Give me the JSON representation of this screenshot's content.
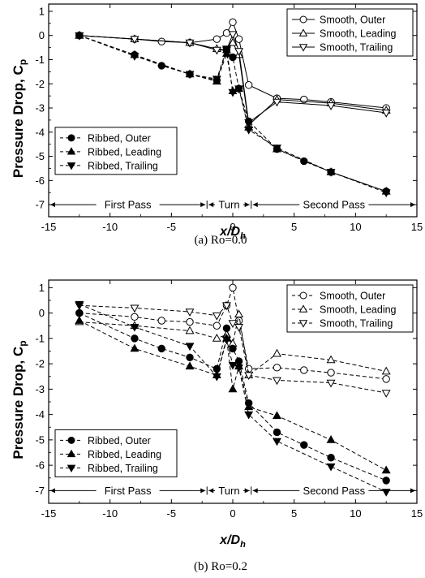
{
  "chart_data": [
    {
      "type": "line",
      "caption": "(a)  Ro=0.0",
      "xlabel": "x/D",
      "xlabel_sub": "h",
      "ylabel": "Pressure Drop, C",
      "ylabel_sub": "p",
      "xlim": [
        -15,
        15
      ],
      "ylim": [
        -7.5,
        1.3
      ],
      "xticks": [
        "-15",
        "-10",
        "-5",
        "0",
        "5",
        "10",
        "15"
      ],
      "yticks": [
        "1",
        "0",
        "-1",
        "-2",
        "-3",
        "-4",
        "-5",
        "-6",
        "-7"
      ],
      "regions": [
        "First Pass",
        "Turn",
        "Second Pass"
      ],
      "legend_top_right": [
        "Smooth, Outer",
        "Smooth, Leading",
        "Smooth, Trailing"
      ],
      "legend_bottom_left": [
        "Ribbed, Outer",
        "Ribbed, Leading",
        "Ribbed, Trailing"
      ],
      "series": [
        {
          "name": "Smooth, Outer",
          "marker": "circle",
          "filled": false,
          "dash": false,
          "x": [
            -12.5,
            -8,
            -5.8,
            -3.5,
            -1.3,
            -0.5,
            0,
            0.5,
            1.3,
            3.6,
            5.8,
            8,
            12.5
          ],
          "y": [
            0,
            -0.15,
            -0.25,
            -0.3,
            -0.15,
            0.1,
            0.55,
            -0.15,
            -2.05,
            -2.6,
            -2.65,
            -2.75,
            -3.0
          ]
        },
        {
          "name": "Smooth, Leading",
          "marker": "triangle-up",
          "filled": false,
          "dash": false,
          "x": [
            -12.5,
            -8,
            -3.5,
            -1.3,
            -0.5,
            0,
            0.5,
            1.3,
            3.6,
            8,
            12.5
          ],
          "y": [
            0,
            -0.15,
            -0.3,
            -0.55,
            -0.6,
            -0.3,
            -0.8,
            -3.7,
            -2.65,
            -2.8,
            -3.1
          ]
        },
        {
          "name": "Smooth, Trailing",
          "marker": "triangle-down",
          "filled": false,
          "dash": false,
          "x": [
            -12.5,
            -8,
            -3.5,
            -1.3,
            -0.5,
            0,
            0.5,
            1.3,
            3.6,
            8,
            12.5
          ],
          "y": [
            0,
            -0.15,
            -0.3,
            -0.6,
            -0.6,
            0.05,
            -0.65,
            -3.6,
            -2.75,
            -2.9,
            -3.2
          ]
        },
        {
          "name": "Ribbed, Outer",
          "marker": "circle",
          "filled": true,
          "dash": true,
          "x": [
            -12.5,
            -8,
            -5.8,
            -3.5,
            -1.3,
            -0.5,
            0,
            0.5,
            1.3,
            3.6,
            5.8,
            8,
            12.5
          ],
          "y": [
            0,
            -0.8,
            -1.25,
            -1.6,
            -1.85,
            -0.6,
            -0.9,
            -2.2,
            -3.55,
            -4.7,
            -5.2,
            -5.65,
            -6.45
          ]
        },
        {
          "name": "Ribbed, Leading",
          "marker": "triangle-up",
          "filled": true,
          "dash": true,
          "x": [
            -12.5,
            -8,
            -3.5,
            -1.3,
            -0.5,
            0,
            0.5,
            1.3,
            3.6,
            8,
            12.5
          ],
          "y": [
            0,
            -0.8,
            -1.6,
            -1.9,
            -0.75,
            -2.3,
            -2.2,
            -3.8,
            -4.7,
            -5.65,
            -6.45
          ]
        },
        {
          "name": "Ribbed, Trailing",
          "marker": "triangle-down",
          "filled": true,
          "dash": true,
          "x": [
            -12.5,
            -8,
            -3.5,
            -1.3,
            -0.5,
            0,
            0.5,
            1.3,
            3.6,
            8,
            12.5
          ],
          "y": [
            0,
            -0.85,
            -1.6,
            -1.8,
            -0.55,
            -2.35,
            -2.2,
            -3.9,
            -4.65,
            -5.65,
            -6.5
          ]
        }
      ]
    },
    {
      "type": "line",
      "caption": "(b)  Ro=0.2",
      "xlabel": "x/D",
      "xlabel_sub": "h",
      "ylabel": "Pressure Drop, C",
      "ylabel_sub": "p",
      "xlim": [
        -15,
        15
      ],
      "ylim": [
        -7.5,
        1.3
      ],
      "xticks": [
        "-15",
        "-10",
        "-5",
        "0",
        "5",
        "10",
        "15"
      ],
      "yticks": [
        "1",
        "0",
        "-1",
        "-2",
        "-3",
        "-4",
        "-5",
        "-6",
        "-7"
      ],
      "regions": [
        "First Pass",
        "Turn",
        "Second Pass"
      ],
      "legend_top_right": [
        "Smooth, Outer",
        "Smooth, Leading",
        "Smooth, Trailing"
      ],
      "legend_bottom_left": [
        "Ribbed, Outer",
        "Ribbed, Leading",
        "Ribbed, Trailing"
      ],
      "series": [
        {
          "name": "Smooth, Outer",
          "marker": "circle",
          "filled": false,
          "dash": true,
          "x": [
            -12.5,
            -8,
            -5.8,
            -3.5,
            -1.3,
            -0.5,
            0,
            0.5,
            1.3,
            3.6,
            5.8,
            8,
            12.5
          ],
          "y": [
            0,
            -0.15,
            -0.3,
            -0.35,
            -0.5,
            0.3,
            1.0,
            -0.3,
            -2.2,
            -2.15,
            -2.25,
            -2.35,
            -2.6
          ]
        },
        {
          "name": "Smooth, Leading",
          "marker": "triangle-up",
          "filled": false,
          "dash": true,
          "x": [
            -12.5,
            -8,
            -3.5,
            -1.3,
            -0.5,
            0,
            0.5,
            1.3,
            3.6,
            8,
            12.5
          ],
          "y": [
            -0.35,
            -0.5,
            -0.7,
            -1.0,
            -0.85,
            -1.2,
            -0.05,
            -2.45,
            -1.6,
            -1.85,
            -2.3
          ]
        },
        {
          "name": "Smooth, Trailing",
          "marker": "triangle-down",
          "filled": false,
          "dash": true,
          "x": [
            -12.5,
            -8,
            -3.5,
            -1.3,
            -0.5,
            0,
            0.5,
            1.3,
            3.6,
            8,
            12.5
          ],
          "y": [
            0.3,
            0.2,
            0.05,
            -0.1,
            0.3,
            -0.4,
            -0.55,
            -2.45,
            -2.65,
            -2.75,
            -3.15
          ]
        },
        {
          "name": "Ribbed, Outer",
          "marker": "circle",
          "filled": true,
          "dash": true,
          "x": [
            -12.5,
            -8,
            -5.8,
            -3.5,
            -1.3,
            -0.5,
            0,
            0.5,
            1.3,
            3.6,
            5.8,
            8,
            12.5
          ],
          "y": [
            0,
            -1.0,
            -1.4,
            -1.75,
            -2.2,
            -0.6,
            -1.4,
            -1.9,
            -3.55,
            -4.7,
            -5.2,
            -5.7,
            -6.6
          ]
        },
        {
          "name": "Ribbed, Leading",
          "marker": "triangle-up",
          "filled": true,
          "dash": true,
          "x": [
            -12.5,
            -8,
            -3.5,
            -1.3,
            -0.5,
            0,
            0.5,
            1.3,
            3.6,
            8,
            12.5
          ],
          "y": [
            -0.3,
            -1.4,
            -2.1,
            -2.45,
            -1.0,
            -3.0,
            -2.1,
            -3.7,
            -4.05,
            -5.0,
            -6.2
          ]
        },
        {
          "name": "Ribbed, Trailing",
          "marker": "triangle-down",
          "filled": true,
          "dash": true,
          "x": [
            -12.5,
            -8,
            -3.5,
            -1.3,
            -0.5,
            0,
            0.5,
            1.3,
            3.6,
            8,
            12.5
          ],
          "y": [
            0.35,
            -0.55,
            -1.3,
            -2.5,
            -1.05,
            -2.05,
            -2.15,
            -4.0,
            -5.05,
            -6.05,
            -7.05
          ]
        }
      ]
    }
  ]
}
